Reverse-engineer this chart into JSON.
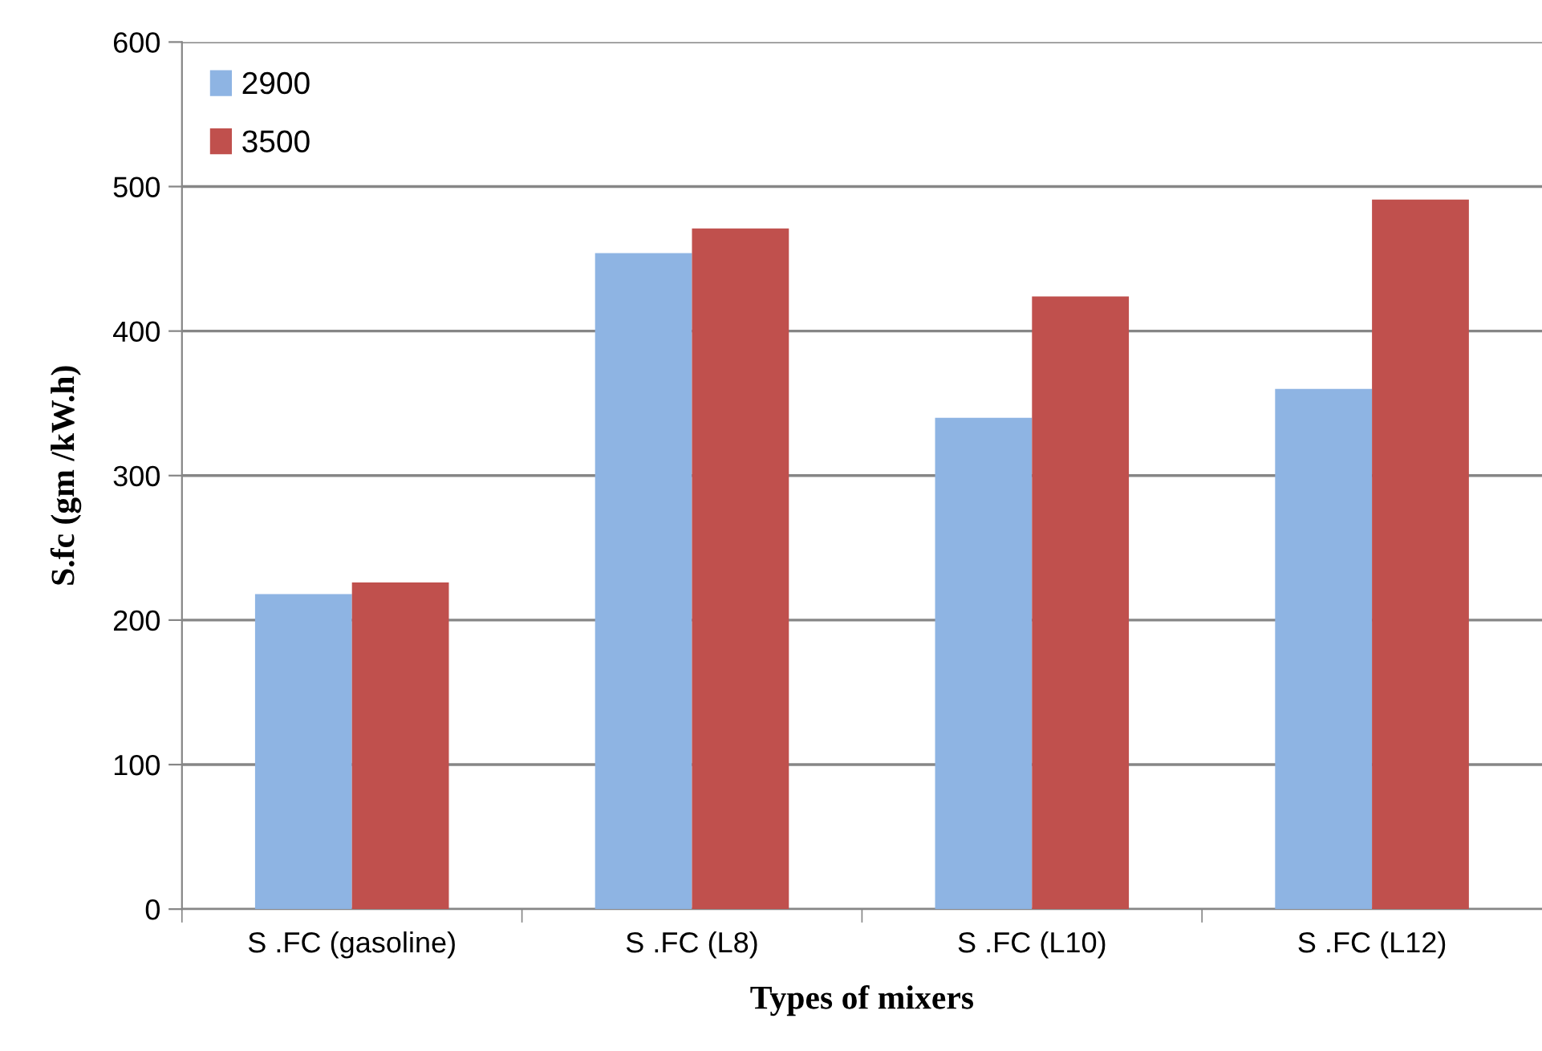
{
  "chart_data": {
    "type": "bar",
    "xlabel": "Types of mixers",
    "ylabel": "S.fc (gm /kW.h)",
    "categories": [
      "S .FC (gasoline)",
      "S .FC (L8)",
      "S .FC (L10)",
      "S .FC (L12)"
    ],
    "series": [
      {
        "name": "2900",
        "color": "#8eb4e3",
        "values": [
          218,
          454,
          340,
          360
        ]
      },
      {
        "name": "3500",
        "color": "#c0504d",
        "values": [
          226,
          471,
          424,
          491
        ]
      }
    ],
    "ylim": [
      0,
      600
    ],
    "yticks": [
      0,
      100,
      200,
      300,
      400,
      500,
      600
    ],
    "grid": "y",
    "legend": "top left"
  }
}
